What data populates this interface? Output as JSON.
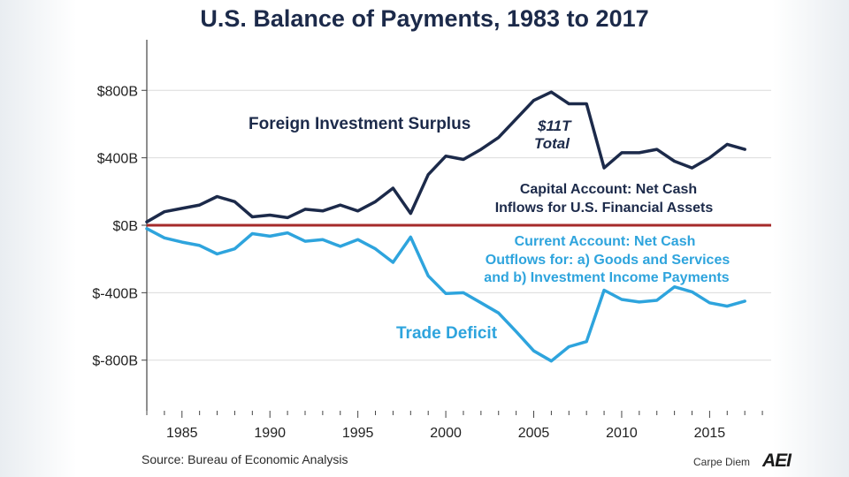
{
  "chart_data": {
    "type": "line",
    "title": "U.S. Balance of Payments, 1983 to 2017",
    "xlabel": "",
    "ylabel": "",
    "x": [
      1983,
      1984,
      1985,
      1986,
      1987,
      1988,
      1989,
      1990,
      1991,
      1992,
      1993,
      1994,
      1995,
      1996,
      1997,
      1998,
      1999,
      2000,
      2001,
      2002,
      2003,
      2004,
      2005,
      2006,
      2007,
      2008,
      2009,
      2010,
      2011,
      2012,
      2013,
      2014,
      2015,
      2016,
      2017
    ],
    "xticks": [
      1985,
      1990,
      1995,
      2000,
      2005,
      2010,
      2015
    ],
    "xlim": [
      1983,
      2018.5
    ],
    "yticks": [
      800,
      400,
      0,
      -400,
      -800
    ],
    "ytick_labels": [
      "$800B",
      "$400B",
      "$0B",
      "$-400B",
      "$-800B"
    ],
    "ylim": [
      -1100,
      1100
    ],
    "zero_line_color": "#a52a2a",
    "series": [
      {
        "name": "Foreign Investment Surplus",
        "color": "#1c2a4a",
        "values": [
          20,
          80,
          100,
          120,
          170,
          140,
          50,
          60,
          45,
          95,
          85,
          120,
          85,
          140,
          220,
          70,
          300,
          410,
          390,
          450,
          520,
          630,
          740,
          790,
          720,
          720,
          340,
          430,
          430,
          450,
          380,
          340,
          400,
          480,
          450
        ]
      },
      {
        "name": "Trade Deficit",
        "color": "#2ea4dd",
        "values": [
          -20,
          -75,
          -100,
          -120,
          -170,
          -140,
          -50,
          -65,
          -45,
          -95,
          -85,
          -125,
          -85,
          -140,
          -220,
          -70,
          -300,
          -405,
          -400,
          -460,
          -520,
          -630,
          -745,
          -805,
          -720,
          -690,
          -385,
          -440,
          -455,
          -445,
          -365,
          -395,
          -460,
          -480,
          -450
        ]
      }
    ],
    "annotations": {
      "surplus_label": "Foreign Investment Surplus",
      "total_line1": "$11T",
      "total_line2": "Total",
      "capital_line1": "Capital Account: Net Cash",
      "capital_line2": "Inflows for U.S. Financial Assets",
      "current_line1": "Current Account: Net Cash",
      "current_line2": "Outflows for: a) Goods and Services",
      "current_line3": "and b) Investment Income Payments",
      "deficit_label": "Trade Deficit"
    }
  },
  "footer": {
    "source": "Source: Bureau of Economic Analysis",
    "brand": "Carpe Diem",
    "logo_text": "AEI"
  }
}
